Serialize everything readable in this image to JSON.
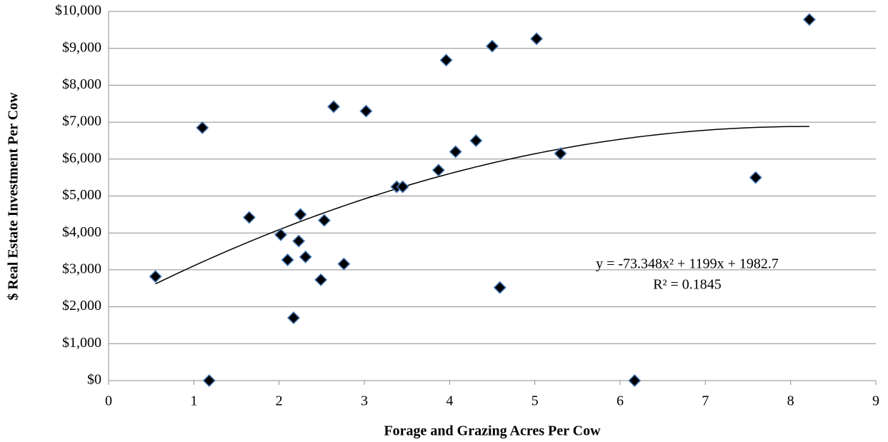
{
  "chart_data": {
    "type": "scatter",
    "x_label": "Forage and Grazing Acres Per Cow",
    "y_label": "$ Real Estate Investment  Per Cow",
    "x": [
      0.55,
      1.1,
      1.18,
      1.65,
      2.02,
      2.1,
      2.17,
      2.23,
      2.25,
      2.31,
      2.49,
      2.53,
      2.64,
      2.76,
      3.02,
      3.38,
      3.45,
      3.87,
      3.96,
      4.07,
      4.31,
      4.5,
      4.59,
      5.02,
      5.3,
      6.17,
      7.59,
      8.22
    ],
    "values": [
      2820,
      6850,
      0,
      4420,
      3950,
      3270,
      1700,
      3780,
      4500,
      3350,
      2730,
      4340,
      7420,
      3160,
      7300,
      5250,
      5250,
      5700,
      8680,
      6200,
      6500,
      9060,
      2520,
      9260,
      6150,
      0,
      5500,
      9780
    ],
    "color": "#000000",
    "marker_edge_color": "#4a7ebb",
    "xlim": [
      0,
      9
    ],
    "xticks": [
      0,
      1,
      2,
      3,
      4,
      5,
      6,
      7,
      8,
      9
    ],
    "ylim": [
      0,
      10000
    ],
    "yticks": [
      {
        "value": 0,
        "label": "$0"
      },
      {
        "value": 1000,
        "label": "$1,000"
      },
      {
        "value": 2000,
        "label": "$2,000"
      },
      {
        "value": 3000,
        "label": "$3,000"
      },
      {
        "value": 4000,
        "label": "$4,000"
      },
      {
        "value": 5000,
        "label": "$5,000"
      },
      {
        "value": 6000,
        "label": "$6,000"
      },
      {
        "value": 7000,
        "label": "$7,000"
      },
      {
        "value": 8000,
        "label": "$8,000"
      },
      {
        "value": 9000,
        "label": "$9,000"
      },
      {
        "value": 10000,
        "label": "$10,000"
      }
    ],
    "grid": true,
    "trendline": {
      "type": "polynomial",
      "coefficients": [
        -73.348,
        1199,
        1982.7
      ],
      "equation": "y = -73.348x² + 1199x + 1982.7",
      "r_squared": 0.1845,
      "r_squared_label": "R² = 0.1845"
    }
  }
}
